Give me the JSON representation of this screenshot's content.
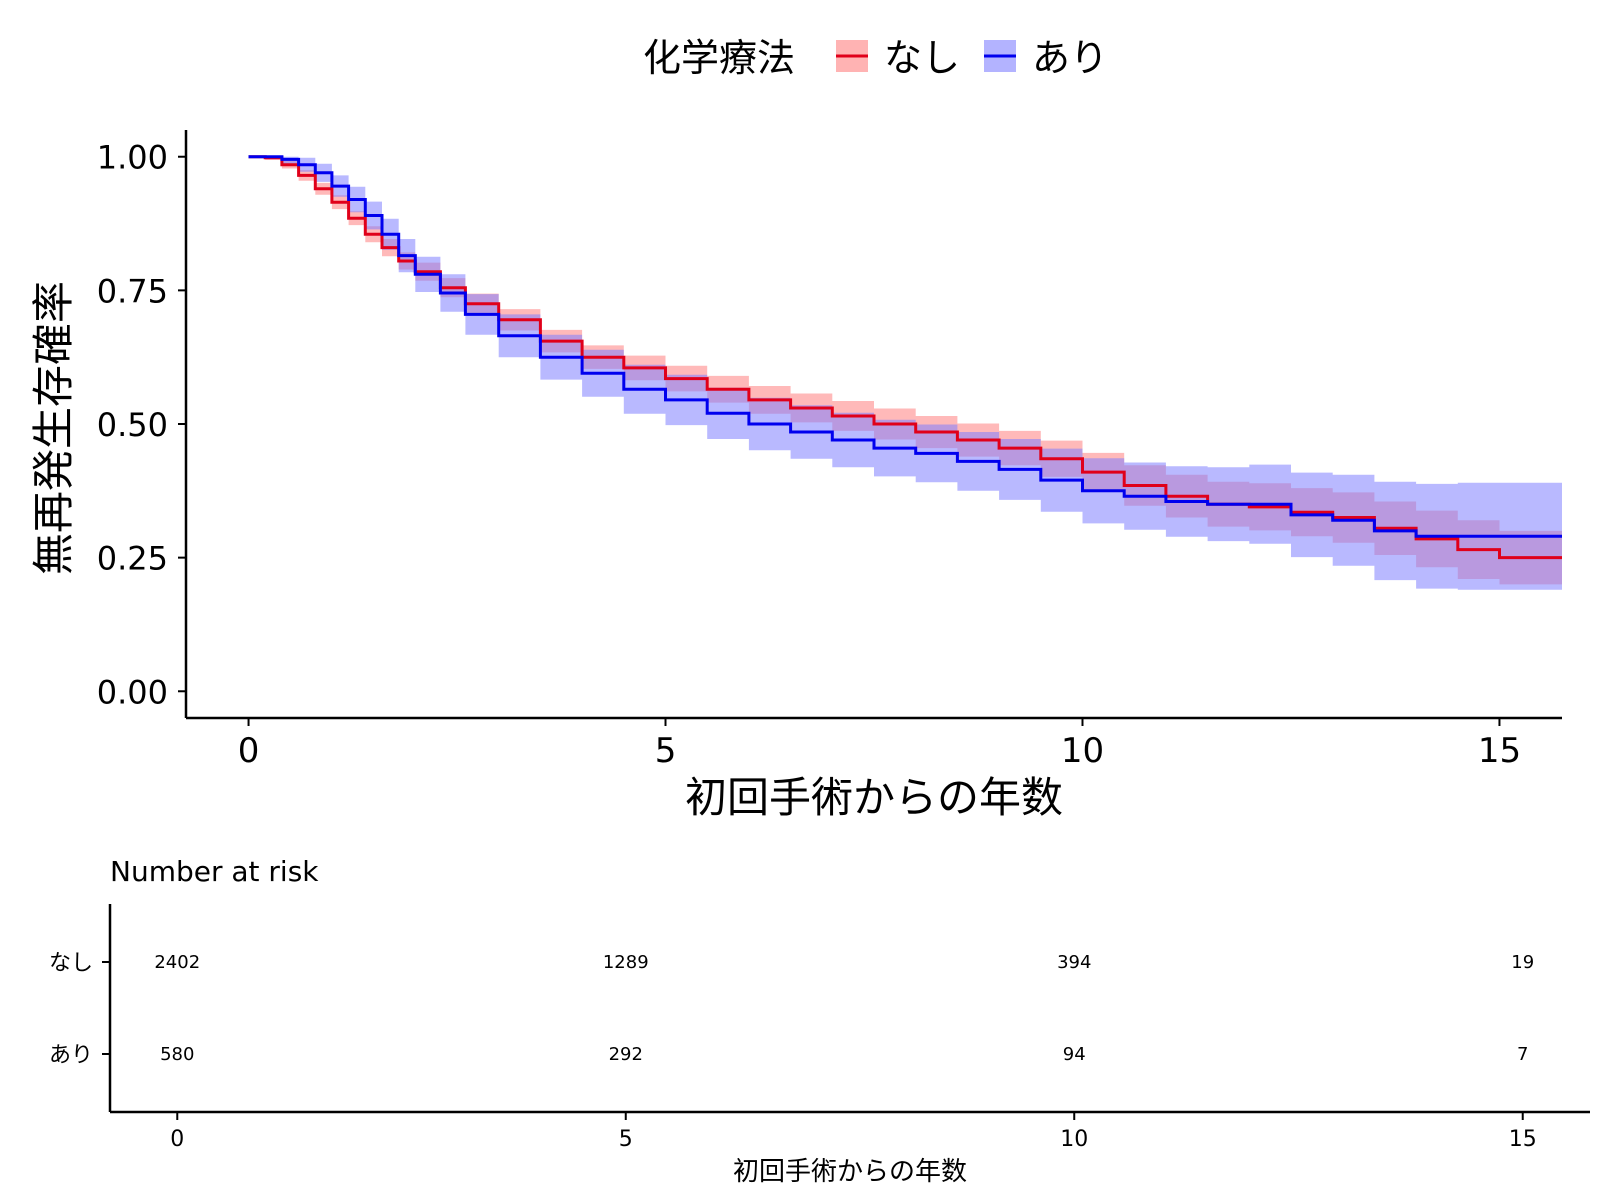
{
  "chart_data": [
    {
      "type": "line",
      "subtype": "kaplan-meier",
      "legend": {
        "title": "化学療法",
        "position": "top",
        "entries": [
          {
            "name": "なし",
            "color": "#e0001a"
          },
          {
            "name": "あり",
            "color": "#0000ee"
          }
        ]
      },
      "xlabel": "初回手術からの年数",
      "ylabel": "無再発生存確率",
      "xlim": [
        -0.75,
        15.75
      ],
      "ylim": [
        -0.05,
        1.05
      ],
      "xticks": [
        0,
        5,
        10,
        15
      ],
      "xtick_labels": [
        "0",
        "5",
        "10",
        "15"
      ],
      "yticks": [
        0,
        0.25,
        0.5,
        0.75,
        1
      ],
      "ytick_labels": [
        "0.00",
        "0.25",
        "0.50",
        "0.75",
        "1.00"
      ],
      "grid": false,
      "series": [
        {
          "name": "なし",
          "color": "#e0001a",
          "band_color": "#ff8080",
          "x": [
            0,
            0.2,
            0.4,
            0.6,
            0.8,
            1.0,
            1.2,
            1.4,
            1.6,
            1.8,
            2.0,
            2.3,
            2.6,
            3.0,
            3.5,
            4.0,
            4.5,
            5.0,
            5.5,
            6.0,
            6.5,
            7.0,
            7.5,
            8.0,
            8.5,
            9.0,
            9.5,
            10.0,
            10.5,
            11.0,
            11.5,
            12.0,
            12.5,
            13.0,
            13.5,
            14.0,
            14.5,
            15.0,
            15.75
          ],
          "y": [
            1.0,
            0.998,
            0.985,
            0.965,
            0.94,
            0.915,
            0.885,
            0.855,
            0.83,
            0.805,
            0.785,
            0.755,
            0.725,
            0.695,
            0.655,
            0.625,
            0.605,
            0.585,
            0.565,
            0.545,
            0.53,
            0.515,
            0.5,
            0.485,
            0.47,
            0.455,
            0.435,
            0.41,
            0.385,
            0.365,
            0.35,
            0.345,
            0.335,
            0.325,
            0.305,
            0.285,
            0.265,
            0.25,
            0.25
          ],
          "lower": [
            1.0,
            0.994,
            0.978,
            0.955,
            0.929,
            0.902,
            0.872,
            0.84,
            0.814,
            0.789,
            0.768,
            0.737,
            0.706,
            0.675,
            0.634,
            0.603,
            0.582,
            0.561,
            0.54,
            0.519,
            0.503,
            0.487,
            0.471,
            0.455,
            0.439,
            0.423,
            0.401,
            0.374,
            0.347,
            0.325,
            0.308,
            0.301,
            0.29,
            0.278,
            0.255,
            0.232,
            0.21,
            0.2,
            0.2
          ],
          "upper": [
            1.0,
            1.0,
            0.992,
            0.975,
            0.951,
            0.928,
            0.898,
            0.87,
            0.846,
            0.821,
            0.802,
            0.773,
            0.744,
            0.715,
            0.676,
            0.647,
            0.628,
            0.609,
            0.59,
            0.571,
            0.557,
            0.543,
            0.529,
            0.515,
            0.501,
            0.487,
            0.469,
            0.446,
            0.423,
            0.405,
            0.392,
            0.389,
            0.38,
            0.372,
            0.355,
            0.338,
            0.32,
            0.3,
            0.3
          ]
        },
        {
          "name": "あり",
          "color": "#0000ee",
          "band_color": "#8080ff",
          "x": [
            0,
            0.2,
            0.4,
            0.6,
            0.8,
            1.0,
            1.2,
            1.4,
            1.6,
            1.8,
            2.0,
            2.3,
            2.6,
            3.0,
            3.5,
            4.0,
            4.5,
            5.0,
            5.5,
            6.0,
            6.5,
            7.0,
            7.5,
            8.0,
            8.5,
            9.0,
            9.5,
            10.0,
            10.5,
            11.0,
            11.5,
            12.0,
            12.5,
            13.0,
            13.5,
            14.0,
            14.5,
            15.0,
            15.75
          ],
          "y": [
            1.0,
            1.0,
            0.995,
            0.985,
            0.97,
            0.945,
            0.92,
            0.89,
            0.855,
            0.815,
            0.78,
            0.745,
            0.705,
            0.665,
            0.625,
            0.595,
            0.565,
            0.545,
            0.52,
            0.5,
            0.485,
            0.47,
            0.455,
            0.445,
            0.43,
            0.415,
            0.395,
            0.375,
            0.365,
            0.355,
            0.35,
            0.35,
            0.33,
            0.32,
            0.3,
            0.29,
            0.29,
            0.29,
            0.29
          ],
          "lower": [
            1.0,
            0.996,
            0.987,
            0.972,
            0.953,
            0.925,
            0.896,
            0.864,
            0.826,
            0.784,
            0.747,
            0.71,
            0.667,
            0.625,
            0.583,
            0.551,
            0.519,
            0.498,
            0.472,
            0.451,
            0.435,
            0.419,
            0.402,
            0.391,
            0.375,
            0.358,
            0.336,
            0.314,
            0.302,
            0.289,
            0.281,
            0.276,
            0.251,
            0.235,
            0.208,
            0.192,
            0.19,
            0.19,
            0.19
          ],
          "upper": [
            1.0,
            1.0,
            1.0,
            0.998,
            0.987,
            0.965,
            0.944,
            0.916,
            0.884,
            0.846,
            0.813,
            0.78,
            0.743,
            0.705,
            0.667,
            0.639,
            0.611,
            0.592,
            0.568,
            0.549,
            0.535,
            0.521,
            0.508,
            0.499,
            0.485,
            0.472,
            0.454,
            0.436,
            0.428,
            0.421,
            0.419,
            0.424,
            0.409,
            0.405,
            0.392,
            0.388,
            0.39,
            0.39,
            0.39
          ]
        }
      ]
    },
    {
      "type": "table",
      "title": "Number at risk",
      "xlabel": "初回手術からの年数",
      "xlim": [
        -0.75,
        15.75
      ],
      "xticks": [
        0,
        5,
        10,
        15
      ],
      "xtick_labels": [
        "0",
        "5",
        "10",
        "15"
      ],
      "rows": [
        {
          "label": "なし",
          "color": "#e0001a",
          "values": [
            2402,
            1289,
            394,
            19
          ]
        },
        {
          "label": "あり",
          "color": "#0000ee",
          "values": [
            580,
            292,
            94,
            7
          ]
        }
      ]
    }
  ]
}
